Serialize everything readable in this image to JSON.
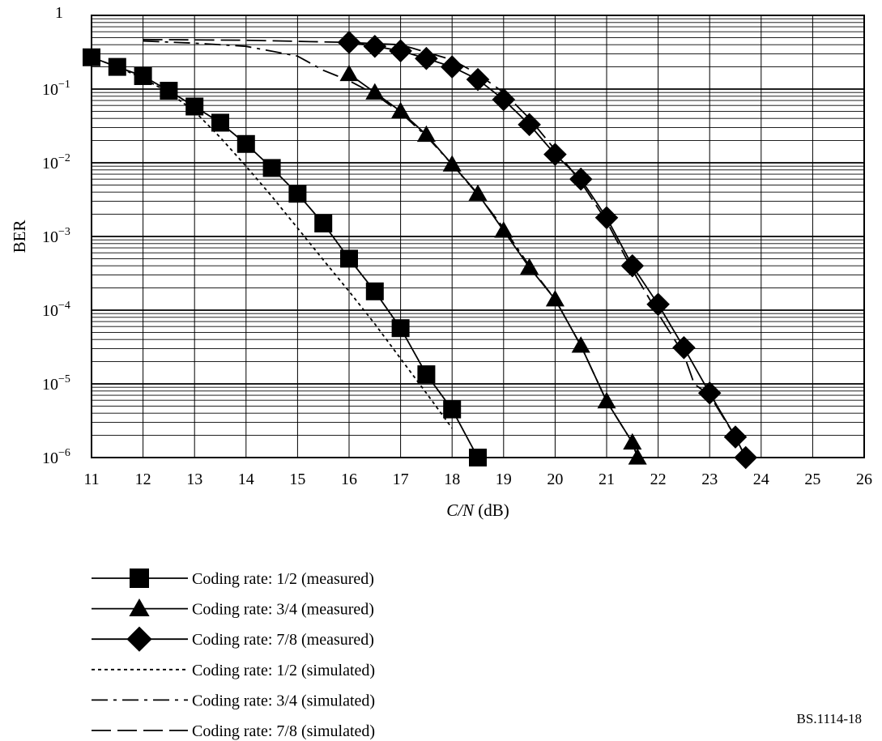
{
  "chart_data": {
    "type": "line",
    "xlabel": {
      "italic_part": "C/N",
      "rest": " (dB)"
    },
    "ylabel": "BER",
    "xlim": [
      11,
      26
    ],
    "ylim": [
      1e-06,
      1
    ],
    "y_scale": "log",
    "x_ticks": [
      "11",
      "12",
      "13",
      "14",
      "15",
      "16",
      "17",
      "18",
      "19",
      "20",
      "21",
      "22",
      "23",
      "24",
      "25",
      "26"
    ],
    "y_ticks": [
      {
        "base": "1",
        "exp": ""
      },
      {
        "base": "10",
        "exp": "−1"
      },
      {
        "base": "10",
        "exp": "−2"
      },
      {
        "base": "10",
        "exp": "−3"
      },
      {
        "base": "10",
        "exp": "−4"
      },
      {
        "base": "10",
        "exp": "−5"
      },
      {
        "base": "10",
        "exp": "−6"
      }
    ],
    "grid": true,
    "legend_position": "bottom-left",
    "series": [
      {
        "name": "Coding rate: 1/2 (measured)",
        "marker": "square",
        "dash": "solid",
        "x": [
          11,
          11.5,
          12,
          12.5,
          13,
          13.5,
          14,
          14.5,
          15,
          15.5,
          16,
          16.5,
          17,
          17.5,
          18,
          18.5
        ],
        "y": [
          0.27,
          0.2,
          0.15,
          0.095,
          0.058,
          0.035,
          0.018,
          0.0085,
          0.0038,
          0.0015,
          0.0005,
          0.00018,
          5.7e-05,
          1.35e-05,
          4.5e-06,
          1e-06
        ]
      },
      {
        "name": "Coding rate: 3/4 (measured)",
        "marker": "triangle",
        "dash": "solid",
        "x": [
          16,
          16.5,
          17,
          17.5,
          18,
          18.5,
          19,
          19.5,
          20,
          20.5,
          21,
          21.5,
          21.6
        ],
        "y": [
          0.16,
          0.09,
          0.05,
          0.024,
          0.0095,
          0.0038,
          0.0012,
          0.00038,
          0.00014,
          3.3e-05,
          5.8e-06,
          1.6e-06,
          1e-06
        ]
      },
      {
        "name": "Coding rate: 7/8 (measured)",
        "marker": "diamond",
        "dash": "solid",
        "x": [
          16,
          16.5,
          17,
          17.5,
          18,
          18.5,
          19,
          19.5,
          20,
          20.5,
          21,
          21.5,
          22,
          22.5,
          23,
          23.5,
          23.7
        ],
        "y": [
          0.43,
          0.38,
          0.33,
          0.26,
          0.2,
          0.135,
          0.072,
          0.033,
          0.013,
          0.006,
          0.0018,
          0.0004,
          0.00012,
          3.1e-05,
          7.5e-06,
          1.9e-06,
          1e-06
        ]
      },
      {
        "name": "Coding rate: 1/2 (simulated)",
        "marker": "none",
        "dash": "dotted",
        "x": [
          11,
          11.5,
          12,
          12.5,
          13,
          13.5,
          14,
          14.5,
          15,
          15.5,
          16,
          16.5,
          17,
          17.5,
          18
        ],
        "y": [
          0.27,
          0.2,
          0.14,
          0.09,
          0.05,
          0.022,
          0.009,
          0.0035,
          0.0013,
          0.00048,
          0.00018,
          6.5e-05,
          2.2e-05,
          7.5e-06,
          2.5e-06
        ]
      },
      {
        "name": "Coding rate: 3/4 (simulated)",
        "marker": "none",
        "dash": "dashdot",
        "x": [
          12,
          13,
          14,
          15,
          15.5,
          16,
          16.5,
          17,
          17.5,
          18,
          18.5,
          19,
          19.5,
          20,
          20.5,
          21,
          21.5,
          21.6
        ],
        "y": [
          0.45,
          0.42,
          0.38,
          0.28,
          0.18,
          0.13,
          0.085,
          0.048,
          0.023,
          0.0095,
          0.0037,
          0.0013,
          0.0004,
          0.00014,
          3.3e-05,
          5.8e-06,
          1.6e-06,
          1e-06
        ]
      },
      {
        "name": "Coding rate: 7/8 (simulated)",
        "marker": "none",
        "dash": "dashed",
        "x": [
          12,
          14,
          16,
          17,
          18,
          18.5,
          19,
          19.5,
          20,
          20.5,
          21,
          21.5,
          22,
          22.5,
          22.7,
          23,
          23.5,
          23.7
        ],
        "y": [
          0.47,
          0.46,
          0.43,
          0.4,
          0.25,
          0.16,
          0.09,
          0.04,
          0.015,
          0.0055,
          0.0016,
          0.00035,
          9e-05,
          2.5e-05,
          1e-05,
          7e-06,
          1.9e-06,
          1e-06
        ]
      }
    ]
  },
  "figure_ref": "BS.1114-18"
}
